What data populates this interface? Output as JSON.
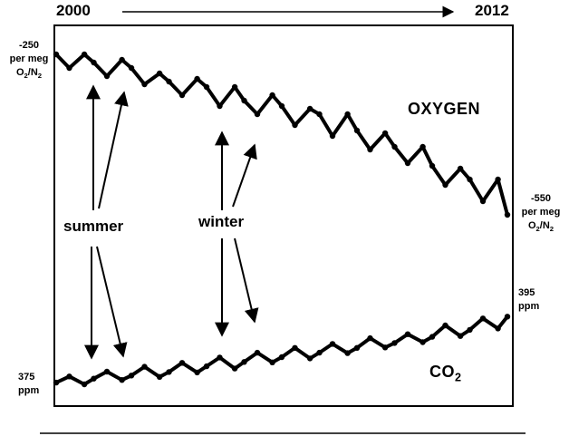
{
  "header": {
    "start_year": "2000",
    "end_year": "2012"
  },
  "labels": {
    "o2_top_value": "-250",
    "o2_top_units": "per meg",
    "o2_top_ratio_main": "O",
    "o2_top_ratio_sub1": "2",
    "o2_top_ratio_mid": "/N",
    "o2_top_ratio_sub2": "2",
    "o2_bottom_value": "-550",
    "o2_bottom_units": "per meg",
    "o2_bottom_ratio_main": "O",
    "o2_bottom_ratio_sub1": "2",
    "o2_bottom_ratio_mid": "/N",
    "o2_bottom_ratio_sub2": "2",
    "co2_top_value": "395",
    "co2_top_units": "ppm",
    "co2_bottom_value": "375",
    "co2_bottom_units": "ppm",
    "oxygen_title": "OXYGEN",
    "co2_title_main": "CO",
    "co2_title_sub": "2",
    "summer": "summer",
    "winter": "winter"
  },
  "colors": {
    "points": "#000000",
    "frame": "#000000"
  },
  "chart_data": {
    "type": "scatter",
    "title": "",
    "xlabel": "",
    "ylabel": "",
    "xlim": [
      2000,
      2012
    ],
    "series": [
      {
        "name": "OXYGEN",
        "units": "per meg O2/N2",
        "ylim": [
          -550,
          -250
        ],
        "x": [
          2000.0,
          2000.35,
          2000.75,
          2001.0,
          2001.35,
          2001.75,
          2002.0,
          2002.35,
          2002.75,
          2003.0,
          2003.35,
          2003.75,
          2004.0,
          2004.35,
          2004.75,
          2005.0,
          2005.35,
          2005.75,
          2006.0,
          2006.35,
          2006.75,
          2007.0,
          2007.35,
          2007.75,
          2008.0,
          2008.35,
          2008.75,
          2009.0,
          2009.35,
          2009.75,
          2010.0,
          2010.35,
          2010.75,
          2011.0,
          2011.35,
          2011.75,
          2012.0
        ],
        "y": [
          -250,
          -275,
          -250,
          -265,
          -290,
          -260,
          -275,
          -305,
          -285,
          -300,
          -325,
          -295,
          -310,
          -345,
          -310,
          -335,
          -360,
          -325,
          -345,
          -380,
          -350,
          -360,
          -400,
          -360,
          -390,
          -425,
          -395,
          -420,
          -450,
          -420,
          -455,
          -490,
          -460,
          -480,
          -520,
          -480,
          -545
        ]
      },
      {
        "name": "CO2",
        "units": "ppm",
        "ylim": [
          375,
          395
        ],
        "x": [
          2000.0,
          2000.35,
          2000.75,
          2001.0,
          2001.35,
          2001.75,
          2002.0,
          2002.35,
          2002.75,
          2003.0,
          2003.35,
          2003.75,
          2004.0,
          2004.35,
          2004.75,
          2005.0,
          2005.35,
          2005.75,
          2006.0,
          2006.35,
          2006.75,
          2007.0,
          2007.35,
          2007.75,
          2008.0,
          2008.35,
          2008.75,
          2009.0,
          2009.35,
          2009.75,
          2010.0,
          2010.35,
          2010.75,
          2011.0,
          2011.35,
          2011.75,
          2012.0
        ],
        "y": [
          375.6,
          377.0,
          375.2,
          376.5,
          378.1,
          376.2,
          377.2,
          379.2,
          376.9,
          378.0,
          380.1,
          377.9,
          379.3,
          381.3,
          378.8,
          380.3,
          382.4,
          380.2,
          381.4,
          383.5,
          381.1,
          382.4,
          384.4,
          382.3,
          383.5,
          385.7,
          383.6,
          384.6,
          386.6,
          384.8,
          386.0,
          388.6,
          386.2,
          387.6,
          390.2,
          387.9,
          390.6
        ]
      }
    ]
  }
}
